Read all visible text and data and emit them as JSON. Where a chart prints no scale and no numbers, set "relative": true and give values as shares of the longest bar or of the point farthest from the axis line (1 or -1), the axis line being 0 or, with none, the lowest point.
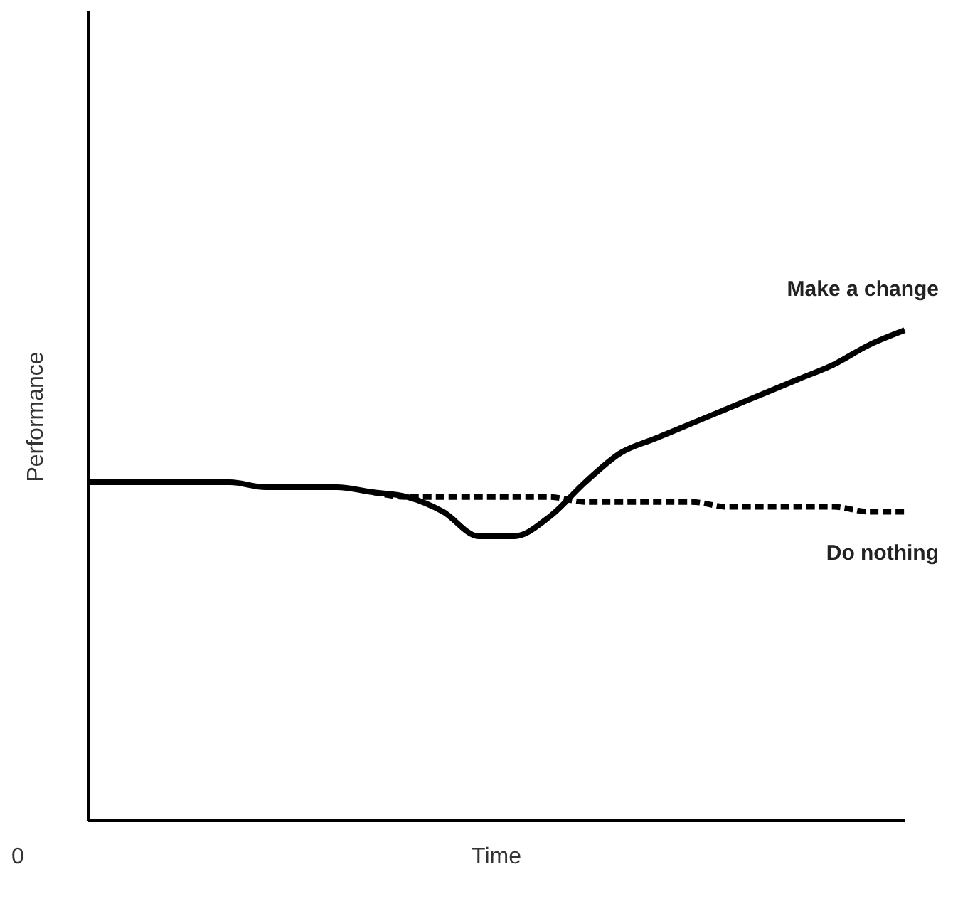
{
  "chart_data": {
    "type": "line",
    "relative": true,
    "xlabel": "Time",
    "ylabel": "Performance",
    "annotations": [
      "0"
    ],
    "categories": [
      null,
      null,
      null,
      null,
      null,
      null,
      null,
      null,
      null,
      null,
      null,
      null,
      null,
      null,
      null,
      null,
      null,
      null,
      null,
      null,
      null,
      null,
      null,
      null
    ],
    "series": [
      {
        "name": "Make a change",
        "color": "#000000",
        "line_style": "solid",
        "values": [
          0.69,
          0.69,
          0.69,
          0.69,
          0.69,
          0.68,
          0.68,
          0.68,
          0.67,
          0.66,
          0.63,
          0.58,
          0.58,
          0.62,
          0.69,
          0.75,
          0.78,
          0.81,
          0.84,
          0.87,
          0.9,
          0.93,
          0.97,
          1
        ]
      },
      {
        "name": "Do nothing",
        "color": "#000000",
        "line_style": "dashed",
        "values": [
          null,
          null,
          null,
          null,
          null,
          null,
          null,
          null,
          0.67,
          0.66,
          0.66,
          0.66,
          0.66,
          0.66,
          0.65,
          0.65,
          0.65,
          0.65,
          0.64,
          0.64,
          0.64,
          0.64,
          0.63,
          0.63
        ]
      }
    ],
    "marker": "none",
    "grid": false,
    "legend": false
  }
}
